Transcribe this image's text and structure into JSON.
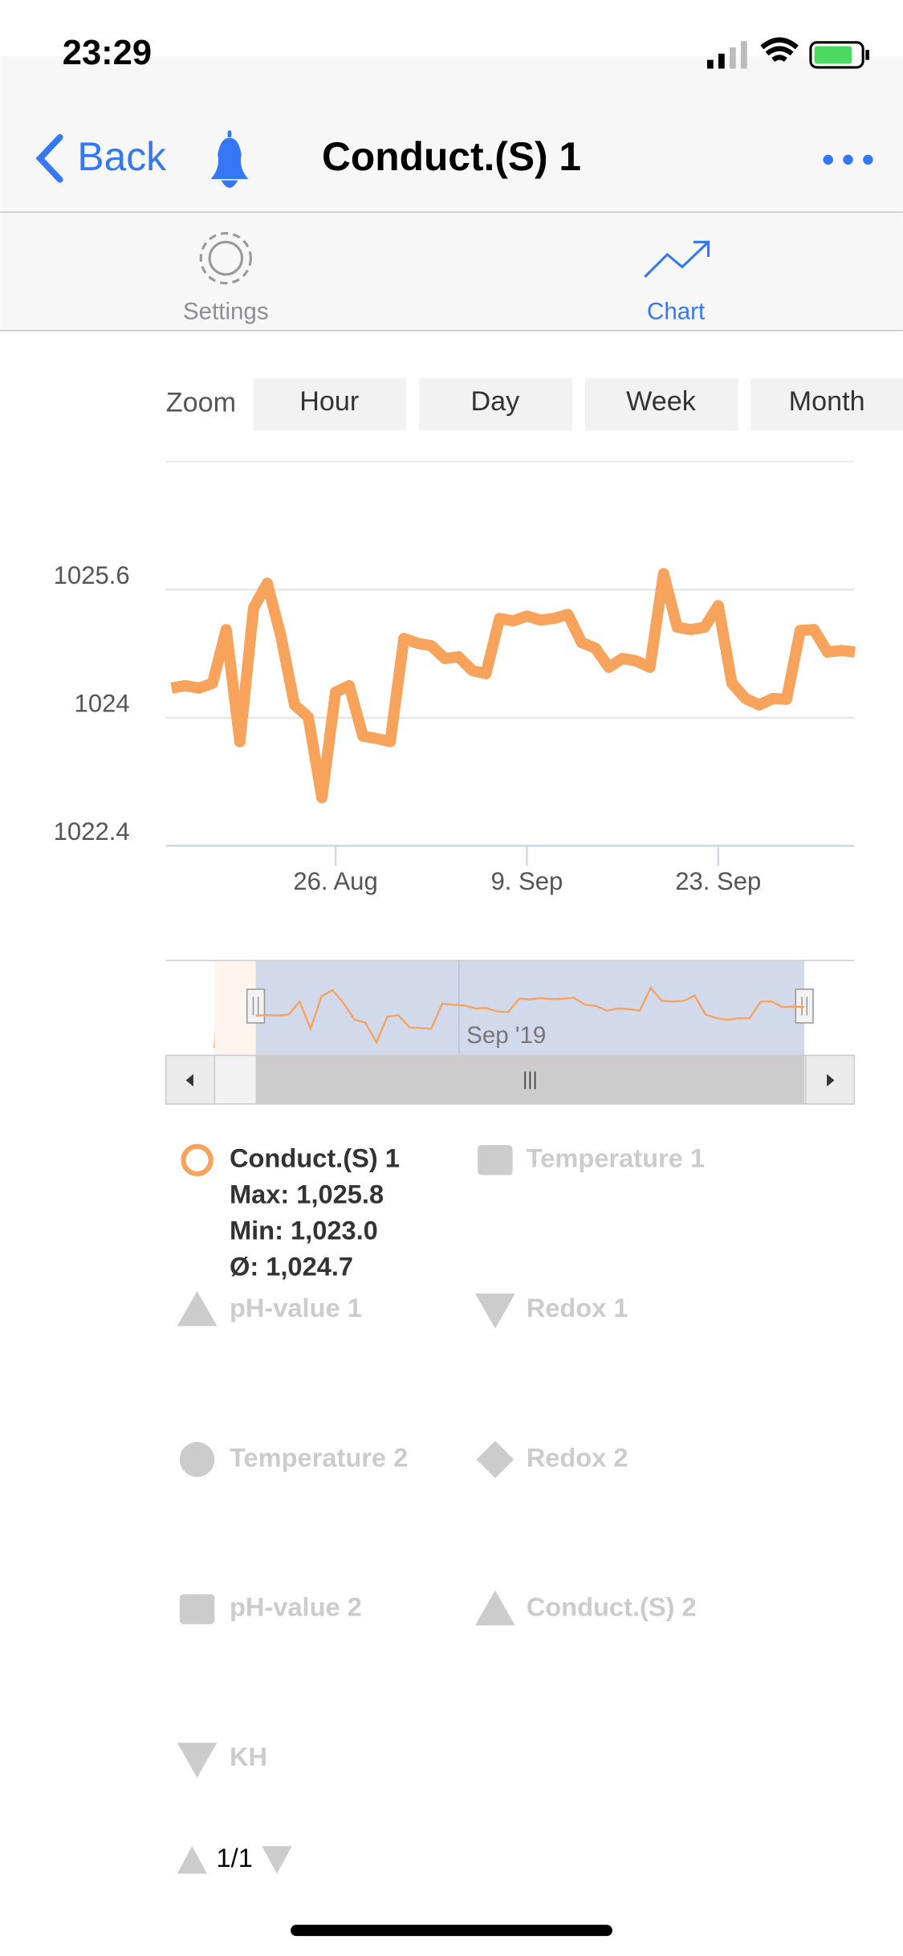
{
  "status_bar": {
    "time": "23:29"
  },
  "nav": {
    "back": "Back",
    "title": "Conduct.(S) 1"
  },
  "tabs": [
    "Settings",
    "Chart"
  ],
  "zoom": {
    "label": "Zoom",
    "options": [
      "Hour",
      "Day",
      "Week",
      "Month"
    ]
  },
  "chart_data": {
    "type": "line",
    "x": [
      "14. Aug",
      "15. Aug",
      "16. Aug",
      "17. Aug",
      "18. Aug",
      "19. Aug",
      "20. Aug",
      "21. Aug",
      "22. Aug",
      "23. Aug",
      "24. Aug",
      "25. Aug",
      "26. Aug",
      "27. Aug",
      "28. Aug",
      "29. Aug",
      "30. Aug",
      "31. Aug",
      "1. Sep",
      "2. Sep",
      "3. Sep",
      "4. Sep",
      "5. Sep",
      "6. Sep",
      "7. Sep",
      "8. Sep",
      "9. Sep",
      "10. Sep",
      "11. Sep",
      "12. Sep",
      "13. Sep",
      "14. Sep",
      "15. Sep",
      "16. Sep",
      "17. Sep",
      "18. Sep",
      "19. Sep",
      "20. Sep",
      "21. Sep",
      "22. Sep",
      "23. Sep",
      "24. Sep",
      "25. Sep",
      "26. Sep",
      "27. Sep",
      "28. Sep",
      "29. Sep",
      "30. Sep",
      "1. Oct",
      "2. Oct",
      "3. Oct"
    ],
    "series": [
      {
        "name": "Conduct.(S) 1",
        "color": "#f7a35c",
        "values": [
          1024.37,
          1024.4,
          1024.37,
          1024.43,
          1025.1,
          1023.7,
          1025.37,
          1025.68,
          1025.02,
          1024.16,
          1024.01,
          1023.0,
          1024.32,
          1024.4,
          1023.77,
          1023.74,
          1023.7,
          1024.99,
          1024.93,
          1024.9,
          1024.74,
          1024.76,
          1024.59,
          1024.55,
          1025.24,
          1025.21,
          1025.27,
          1025.22,
          1025.24,
          1025.29,
          1024.94,
          1024.87,
          1024.63,
          1024.74,
          1024.71,
          1024.63,
          1025.8,
          1025.13,
          1025.1,
          1025.13,
          1025.4,
          1024.43,
          1024.24,
          1024.16,
          1024.24,
          1024.23,
          1025.09,
          1025.1,
          1024.82,
          1024.84,
          1024.82
        ]
      }
    ],
    "ylim": [
      1022.4,
      1027.2
    ],
    "yticks": [
      1022.4,
      1024,
      1025.6
    ],
    "xticks": [
      "26. Aug",
      "9. Sep",
      "23. Sep"
    ],
    "grid": true,
    "navigator": {
      "label": "Sep '19"
    }
  },
  "legend": {
    "stats": [
      "Max: 1,025.8",
      "Min: 1,023.0",
      "Ø: 1,024.7"
    ],
    "items": [
      "Temperature 1",
      "pH-value 1",
      "Redox 1",
      "Temperature 2",
      "Redox 2",
      "pH-value 2",
      "Conduct.(S) 2",
      "KH"
    ],
    "page": "1/1"
  }
}
